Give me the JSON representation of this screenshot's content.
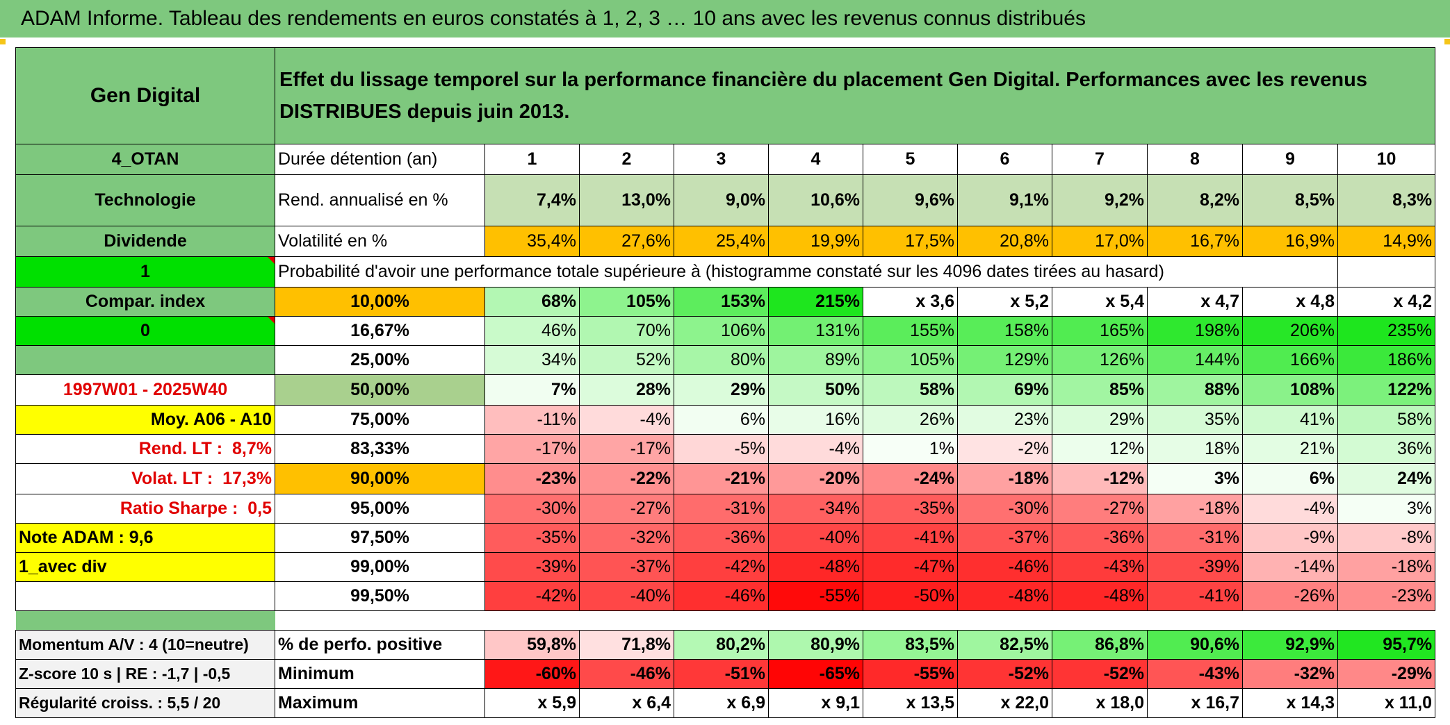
{
  "title": "ADAM Informe. Tableau des rendements en euros constatés à 1, 2, 3 … 10 ans avec les revenus connus distribués",
  "header": {
    "name": "Gen Digital",
    "description": "Effet du lissage temporel sur la performance financière du placement Gen Digital. Performances avec les revenus DISTRIBUES depuis juin 2013."
  },
  "left_panel": {
    "code": "4_OTAN",
    "sector": "Technologie",
    "type": "Dividende",
    "toggle1": "1",
    "compar_label": "Compar. index",
    "toggle2": "0",
    "period": "1997W01 - 2025W40",
    "moy": "Moy. A06 - A10",
    "rend_lt_label": "Rend. LT :",
    "rend_lt_value": "8,7%",
    "volat_lt_label": "Volat. LT :",
    "volat_lt_value": "17,3%",
    "sharpe_label": "Ratio Sharpe :",
    "sharpe_value": "0,5",
    "note": "Note ADAM : 9,6",
    "avec_div": "1_avec div"
  },
  "row_labels": {
    "duration": "Durée détention (an)",
    "rend": "Rend. annualisé en %",
    "volat": "Volatilité en %",
    "proba": "Probabilité d'avoir une performance totale supérieure à (histogramme constaté sur les 4096 dates tirées au hasard)"
  },
  "years": [
    "1",
    "2",
    "3",
    "4",
    "5",
    "6",
    "7",
    "8",
    "9",
    "10"
  ],
  "rend_annualise": [
    "7,4%",
    "13,0%",
    "9,0%",
    "10,6%",
    "9,6%",
    "9,1%",
    "9,2%",
    "8,2%",
    "8,5%",
    "8,3%"
  ],
  "volatilite": [
    "35,4%",
    "27,6%",
    "25,4%",
    "19,9%",
    "17,5%",
    "20,8%",
    "17,0%",
    "16,7%",
    "16,9%",
    "14,9%"
  ],
  "percentile_rows": [
    {
      "pct": "10,00%",
      "values": [
        "68%",
        "105%",
        "153%",
        "215%",
        "x 3,6",
        "x 5,2",
        "x 5,4",
        "x 4,7",
        "x 4,8",
        "x 4,2"
      ]
    },
    {
      "pct": "16,67%",
      "values": [
        "46%",
        "70%",
        "106%",
        "131%",
        "155%",
        "158%",
        "165%",
        "198%",
        "206%",
        "235%"
      ]
    },
    {
      "pct": "25,00%",
      "values": [
        "34%",
        "52%",
        "80%",
        "89%",
        "105%",
        "129%",
        "126%",
        "144%",
        "166%",
        "186%"
      ]
    },
    {
      "pct": "50,00%",
      "values": [
        "7%",
        "28%",
        "29%",
        "50%",
        "58%",
        "69%",
        "85%",
        "88%",
        "108%",
        "122%"
      ]
    },
    {
      "pct": "75,00%",
      "values": [
        "-11%",
        "-4%",
        "6%",
        "16%",
        "26%",
        "23%",
        "29%",
        "35%",
        "41%",
        "58%"
      ]
    },
    {
      "pct": "83,33%",
      "values": [
        "-17%",
        "-17%",
        "-5%",
        "-4%",
        "1%",
        "-2%",
        "12%",
        "18%",
        "21%",
        "36%"
      ]
    },
    {
      "pct": "90,00%",
      "values": [
        "-23%",
        "-22%",
        "-21%",
        "-20%",
        "-24%",
        "-18%",
        "-12%",
        "3%",
        "6%",
        "24%"
      ]
    },
    {
      "pct": "95,00%",
      "values": [
        "-30%",
        "-27%",
        "-31%",
        "-34%",
        "-35%",
        "-30%",
        "-27%",
        "-18%",
        "-4%",
        "3%"
      ]
    },
    {
      "pct": "97,50%",
      "values": [
        "-35%",
        "-32%",
        "-36%",
        "-40%",
        "-41%",
        "-37%",
        "-36%",
        "-31%",
        "-9%",
        "-8%"
      ]
    },
    {
      "pct": "99,00%",
      "values": [
        "-39%",
        "-37%",
        "-42%",
        "-48%",
        "-47%",
        "-46%",
        "-43%",
        "-39%",
        "-14%",
        "-18%"
      ]
    },
    {
      "pct": "99,50%",
      "values": [
        "-42%",
        "-40%",
        "-46%",
        "-55%",
        "-50%",
        "-48%",
        "-48%",
        "-41%",
        "-26%",
        "-23%"
      ]
    }
  ],
  "bottom": {
    "momentum": "Momentum A/V : 4 (10=neutre)",
    "zscore": "Z-score 10 s | RE : -1,7 | -0,5",
    "regularite": "Régularité croiss. : 5,5 / 20",
    "perf_positive_label": "% de perfo. positive",
    "minimum_label": "Minimum",
    "maximum_label": "Maximum",
    "perf_positive": [
      "59,8%",
      "71,8%",
      "80,2%",
      "80,9%",
      "83,5%",
      "82,5%",
      "86,8%",
      "90,6%",
      "92,9%",
      "95,7%"
    ],
    "minimum": [
      "-60%",
      "-46%",
      "-51%",
      "-65%",
      "-55%",
      "-52%",
      "-52%",
      "-43%",
      "-32%",
      "-29%"
    ],
    "maximum": [
      "x 5,9",
      "x 6,4",
      "x 6,9",
      "x 9,1",
      "x 13,5",
      "x 22,0",
      "x 18,0",
      "x 16,7",
      "x 14,3",
      "x 11,0"
    ]
  },
  "colors": {
    "title_green": "#7ec87e",
    "bright_green": "#00e000",
    "yellow": "#ffff00",
    "orange": "#ffc000",
    "red_text": "#e00000"
  }
}
